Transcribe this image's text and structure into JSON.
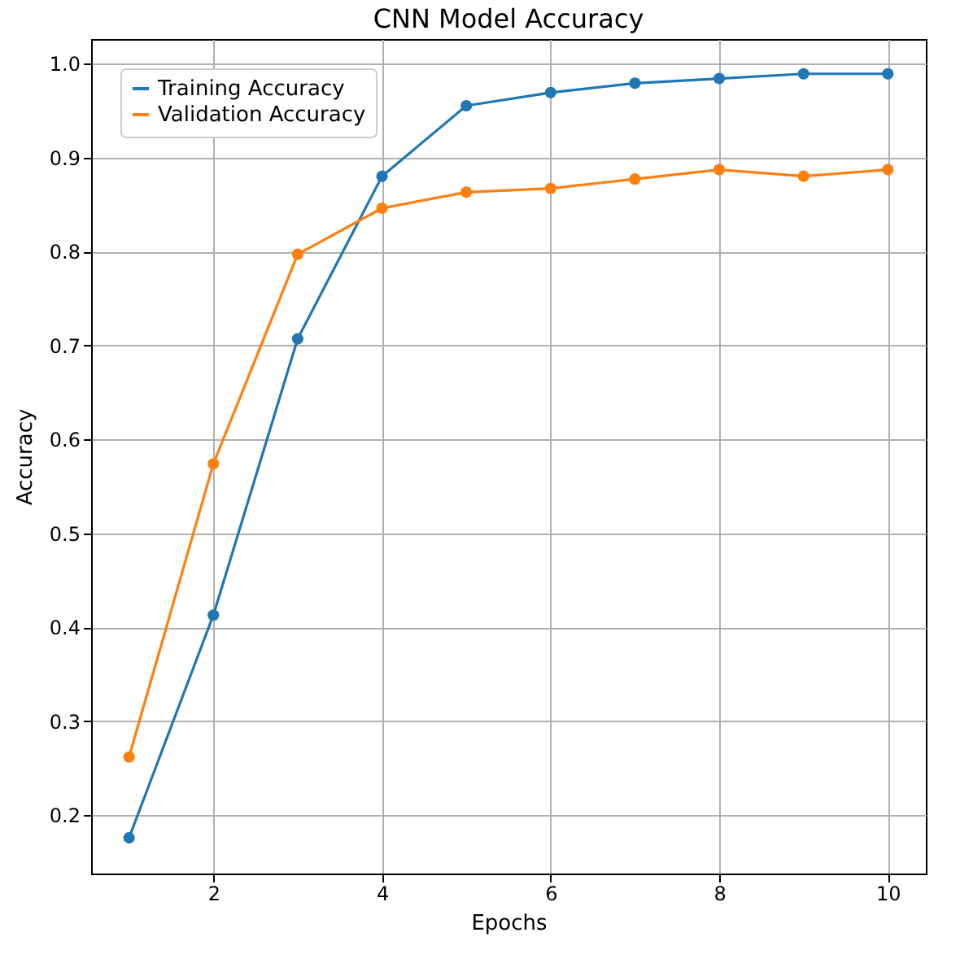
{
  "chart_data": {
    "type": "line",
    "title": "CNN Model Accuracy",
    "xlabel": "Epochs",
    "ylabel": "Accuracy",
    "x": [
      1,
      2,
      3,
      4,
      5,
      6,
      7,
      8,
      9,
      10
    ],
    "series": [
      {
        "name": "Training Accuracy",
        "color": "#1f77b4",
        "values": [
          0.176,
          0.413,
          0.707,
          0.88,
          0.955,
          0.969,
          0.979,
          0.984,
          0.989,
          0.989
        ]
      },
      {
        "name": "Validation Accuracy",
        "color": "#ff7f0e",
        "values": [
          0.262,
          0.574,
          0.797,
          0.846,
          0.863,
          0.867,
          0.877,
          0.887,
          0.88,
          0.887
        ]
      }
    ],
    "xlim": [
      0.55,
      10.45
    ],
    "xticks": [
      2,
      4,
      6,
      8,
      10
    ],
    "ylim": [
      0.138,
      1.026
    ],
    "yticks": [
      0.2,
      0.3,
      0.4,
      0.5,
      0.6,
      0.7,
      0.8,
      0.9,
      {
        "value": 1,
        "label": "1.0"
      }
    ],
    "grid": true,
    "legend": "top left",
    "marker": "circle",
    "line_style": "solid"
  }
}
